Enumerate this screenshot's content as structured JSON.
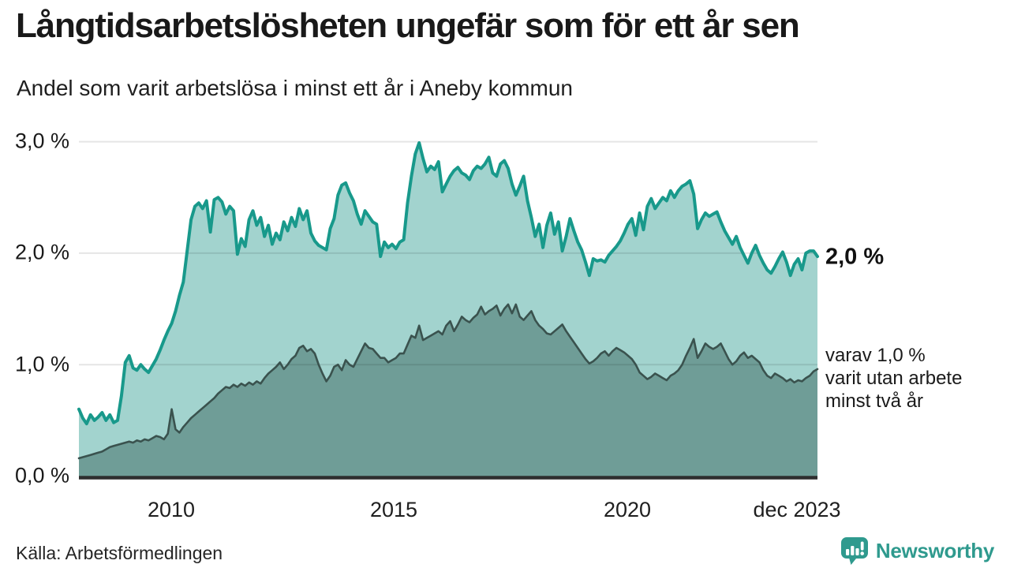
{
  "header": {
    "title": "Långtidsarbetslösheten ungefär som för ett år sen",
    "subtitle": "Andel som varit arbetslösa i minst ett år i Aneby kommun"
  },
  "chart_data": {
    "type": "area",
    "title": "Långtidsarbetslösheten ungefär som för ett år sen",
    "subtitle": "Andel som varit arbetslösa i minst ett år i Aneby kommun",
    "unit": "%",
    "x_range": [
      "2008-01",
      "2023-12"
    ],
    "x_resolution": "monthly",
    "ylim": [
      0,
      3.05
    ],
    "y_gridlines": [
      1,
      2,
      3
    ],
    "y_ticks": [
      "0,0 %",
      "1,0 %",
      "2,0 %",
      "3,0 %"
    ],
    "x_ticks": [
      "2010",
      "2015",
      "2020",
      "dec 2023"
    ],
    "grid": "horizontal-only",
    "legend_position": "right-of-line-end-annotations",
    "series": [
      {
        "name": "Andel arbetslösa minst ett år",
        "end_label": "2,0 %",
        "last_value": 2.0,
        "line_color": "#18998b",
        "fill_color": "#a2d3ce",
        "values": [
          0.6,
          0.52,
          0.47,
          0.55,
          0.5,
          0.53,
          0.57,
          0.5,
          0.55,
          0.48,
          0.5,
          0.72,
          1.02,
          1.08,
          0.97,
          0.95,
          1.0,
          0.96,
          0.93,
          0.99,
          1.05,
          1.13,
          1.22,
          1.3,
          1.37,
          1.48,
          1.62,
          1.74,
          2.02,
          2.3,
          2.42,
          2.45,
          2.4,
          2.47,
          2.19,
          2.48,
          2.5,
          2.46,
          2.35,
          2.42,
          2.38,
          1.99,
          2.13,
          2.06,
          2.3,
          2.38,
          2.25,
          2.32,
          2.15,
          2.25,
          2.08,
          2.18,
          2.12,
          2.28,
          2.2,
          2.32,
          2.24,
          2.4,
          2.3,
          2.38,
          2.18,
          2.11,
          2.07,
          2.05,
          2.03,
          2.22,
          2.31,
          2.52,
          2.61,
          2.63,
          2.54,
          2.47,
          2.35,
          2.26,
          2.38,
          2.33,
          2.28,
          2.26,
          1.97,
          2.1,
          2.05,
          2.08,
          2.04,
          2.1,
          2.12,
          2.45,
          2.69,
          2.89,
          2.99,
          2.85,
          2.73,
          2.78,
          2.75,
          2.82,
          2.55,
          2.62,
          2.69,
          2.74,
          2.77,
          2.72,
          2.7,
          2.66,
          2.74,
          2.78,
          2.76,
          2.8,
          2.86,
          2.72,
          2.69,
          2.8,
          2.83,
          2.76,
          2.62,
          2.52,
          2.6,
          2.69,
          2.47,
          2.32,
          2.15,
          2.26,
          2.05,
          2.25,
          2.36,
          2.17,
          2.28,
          2.02,
          2.15,
          2.31,
          2.2,
          2.1,
          2.03,
          1.92,
          1.8,
          1.95,
          1.93,
          1.94,
          1.92,
          1.98,
          2.02,
          2.06,
          2.11,
          2.18,
          2.26,
          2.31,
          2.16,
          2.36,
          2.21,
          2.42,
          2.49,
          2.4,
          2.45,
          2.5,
          2.47,
          2.56,
          2.5,
          2.56,
          2.6,
          2.62,
          2.65,
          2.53,
          2.22,
          2.3,
          2.36,
          2.33,
          2.35,
          2.37,
          2.28,
          2.2,
          2.14,
          2.08,
          2.15,
          2.05,
          1.98,
          1.91,
          2.0,
          2.07,
          1.98,
          1.91,
          1.85,
          1.82,
          1.88,
          1.95,
          2.01,
          1.92,
          1.8,
          1.9,
          1.95,
          1.85,
          2.0,
          2.02,
          2.02,
          1.97
        ]
      },
      {
        "name": "Andel arbetslösa minst två år",
        "end_label": "varav 1,0 % varit utan arbete minst två år",
        "last_value": 1.0,
        "line_color": "#3a524e",
        "fill_color": "#6f9d97",
        "values": [
          0.16,
          0.17,
          0.18,
          0.19,
          0.2,
          0.21,
          0.22,
          0.24,
          0.26,
          0.27,
          0.28,
          0.29,
          0.3,
          0.31,
          0.3,
          0.32,
          0.31,
          0.33,
          0.32,
          0.34,
          0.36,
          0.35,
          0.33,
          0.38,
          0.6,
          0.42,
          0.39,
          0.44,
          0.48,
          0.52,
          0.55,
          0.58,
          0.61,
          0.64,
          0.67,
          0.7,
          0.74,
          0.77,
          0.8,
          0.79,
          0.82,
          0.8,
          0.83,
          0.81,
          0.84,
          0.82,
          0.85,
          0.83,
          0.88,
          0.92,
          0.95,
          0.98,
          1.02,
          0.96,
          1.0,
          1.05,
          1.08,
          1.15,
          1.17,
          1.12,
          1.14,
          1.1,
          1.0,
          0.92,
          0.85,
          0.9,
          0.98,
          1.0,
          0.95,
          1.04,
          1.0,
          0.98,
          1.05,
          1.12,
          1.19,
          1.15,
          1.14,
          1.1,
          1.06,
          1.06,
          1.02,
          1.04,
          1.06,
          1.1,
          1.1,
          1.18,
          1.26,
          1.24,
          1.35,
          1.22,
          1.24,
          1.26,
          1.28,
          1.3,
          1.27,
          1.35,
          1.39,
          1.3,
          1.36,
          1.43,
          1.4,
          1.38,
          1.42,
          1.45,
          1.52,
          1.45,
          1.48,
          1.5,
          1.53,
          1.44,
          1.5,
          1.54,
          1.46,
          1.54,
          1.43,
          1.4,
          1.44,
          1.48,
          1.4,
          1.35,
          1.32,
          1.28,
          1.27,
          1.3,
          1.33,
          1.36,
          1.3,
          1.25,
          1.2,
          1.15,
          1.1,
          1.05,
          1.01,
          1.03,
          1.06,
          1.1,
          1.12,
          1.08,
          1.12,
          1.15,
          1.13,
          1.11,
          1.08,
          1.05,
          1.0,
          0.93,
          0.9,
          0.87,
          0.89,
          0.92,
          0.9,
          0.88,
          0.86,
          0.9,
          0.92,
          0.95,
          1.0,
          1.08,
          1.15,
          1.23,
          1.06,
          1.12,
          1.19,
          1.16,
          1.14,
          1.16,
          1.19,
          1.12,
          1.05,
          1.0,
          1.03,
          1.08,
          1.11,
          1.06,
          1.08,
          1.05,
          1.02,
          0.95,
          0.9,
          0.88,
          0.92,
          0.9,
          0.88,
          0.85,
          0.87,
          0.84,
          0.86,
          0.85,
          0.88,
          0.9,
          0.94,
          0.96
        ]
      }
    ]
  },
  "annotations": {
    "series1_end": "2,0 %",
    "series2_end_lines": [
      "varav 1,0 %",
      "varit utan arbete",
      "minst två år"
    ]
  },
  "footer": {
    "source": "Källa: Arbetsförmedlingen",
    "brand": "Newsworthy",
    "brand_color": "#2f9a8e"
  }
}
